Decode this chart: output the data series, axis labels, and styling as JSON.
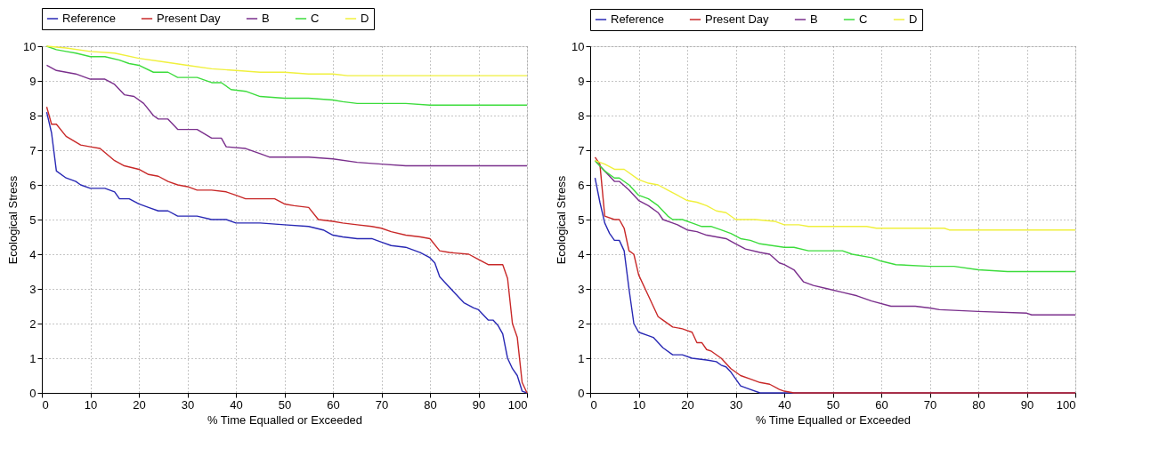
{
  "chart_data": [
    {
      "type": "line",
      "xlabel": "% Time Equalled or Exceeded",
      "ylabel": "Ecological Stress",
      "xlim": [
        0,
        100
      ],
      "ylim": [
        0,
        10
      ],
      "xticks": [
        0,
        10,
        20,
        30,
        40,
        50,
        60,
        70,
        80,
        90,
        100
      ],
      "yticks": [
        0,
        1,
        2,
        3,
        4,
        5,
        6,
        7,
        8,
        9,
        10
      ],
      "grid": true,
      "legend": "top",
      "line_style": "solid",
      "marker": "none",
      "series": [
        {
          "name": "Reference",
          "color": "#2828b4",
          "x": [
            1,
            2,
            3,
            5,
            7,
            8,
            10,
            13,
            15,
            16,
            18,
            20,
            22,
            24,
            26,
            28,
            32,
            35,
            38,
            40,
            45,
            50,
            55,
            58,
            60,
            62,
            65,
            68,
            70,
            72,
            75,
            78,
            80,
            81,
            82,
            83,
            85,
            87,
            89,
            90,
            92,
            93,
            94,
            95,
            96,
            97,
            98,
            99,
            100
          ],
          "values": [
            8.1,
            7.5,
            6.4,
            6.2,
            6.1,
            6.0,
            5.9,
            5.9,
            5.8,
            5.6,
            5.6,
            5.45,
            5.35,
            5.25,
            5.25,
            5.1,
            5.1,
            5.0,
            5.0,
            4.9,
            4.9,
            4.85,
            4.8,
            4.7,
            4.55,
            4.5,
            4.45,
            4.45,
            4.35,
            4.25,
            4.2,
            4.05,
            3.9,
            3.75,
            3.35,
            3.2,
            2.9,
            2.6,
            2.45,
            2.4,
            2.1,
            2.1,
            1.95,
            1.7,
            1.0,
            0.7,
            0.5,
            0.05,
            0
          ]
        },
        {
          "name": "Present Day",
          "color": "#c82828",
          "x": [
            1,
            2,
            3,
            5,
            8,
            10,
            12,
            15,
            17,
            20,
            22,
            24,
            26,
            28,
            30,
            32,
            35,
            38,
            40,
            42,
            48,
            50,
            52,
            55,
            57,
            60,
            62,
            65,
            68,
            70,
            72,
            75,
            78,
            80,
            82,
            84,
            88,
            90,
            92,
            95,
            96,
            97,
            98,
            99,
            100
          ],
          "values": [
            8.25,
            7.75,
            7.75,
            7.4,
            7.15,
            7.1,
            7.05,
            6.7,
            6.55,
            6.45,
            6.3,
            6.25,
            6.1,
            6.0,
            5.95,
            5.85,
            5.85,
            5.8,
            5.7,
            5.6,
            5.6,
            5.45,
            5.4,
            5.35,
            5.0,
            4.95,
            4.9,
            4.85,
            4.8,
            4.75,
            4.65,
            4.55,
            4.5,
            4.45,
            4.1,
            4.05,
            4.0,
            3.85,
            3.7,
            3.7,
            3.3,
            2.0,
            1.6,
            0.3,
            0
          ]
        },
        {
          "name": "B",
          "color": "#7a2f8c",
          "x": [
            1,
            3,
            5,
            7,
            10,
            13,
            15,
            17,
            19,
            21,
            23,
            24,
            26,
            28,
            32,
            35,
            37,
            38,
            42,
            45,
            47,
            50,
            55,
            60,
            65,
            70,
            75,
            100
          ],
          "values": [
            9.45,
            9.3,
            9.25,
            9.2,
            9.05,
            9.05,
            8.9,
            8.6,
            8.55,
            8.35,
            8.0,
            7.9,
            7.9,
            7.6,
            7.6,
            7.35,
            7.35,
            7.1,
            7.05,
            6.9,
            6.8,
            6.8,
            6.8,
            6.75,
            6.65,
            6.6,
            6.55,
            6.55
          ]
        },
        {
          "name": "C",
          "color": "#3cdc3c",
          "x": [
            1,
            3,
            5,
            7,
            10,
            13,
            16,
            18,
            20,
            23,
            26,
            28,
            32,
            35,
            37,
            39,
            42,
            45,
            50,
            55,
            60,
            62,
            65,
            75,
            80,
            100
          ],
          "values": [
            10,
            9.9,
            9.85,
            9.8,
            9.7,
            9.7,
            9.6,
            9.5,
            9.45,
            9.25,
            9.25,
            9.1,
            9.1,
            8.95,
            8.95,
            8.75,
            8.7,
            8.55,
            8.5,
            8.5,
            8.45,
            8.4,
            8.35,
            8.35,
            8.3,
            8.3
          ]
        },
        {
          "name": "D",
          "color": "#f0f03c",
          "x": [
            1,
            5,
            10,
            15,
            20,
            25,
            30,
            35,
            40,
            45,
            50,
            55,
            60,
            63,
            100
          ],
          "values": [
            10,
            9.95,
            9.85,
            9.8,
            9.65,
            9.55,
            9.45,
            9.35,
            9.3,
            9.25,
            9.25,
            9.2,
            9.2,
            9.15,
            9.15
          ]
        }
      ]
    },
    {
      "type": "line",
      "xlabel": "% Time Equalled or Exceeded",
      "ylabel": "Ecological Stress",
      "xlim": [
        0,
        100
      ],
      "ylim": [
        0,
        10
      ],
      "xticks": [
        0,
        10,
        20,
        30,
        40,
        50,
        60,
        70,
        80,
        90,
        100
      ],
      "yticks": [
        0,
        1,
        2,
        3,
        4,
        5,
        6,
        7,
        8,
        9,
        10
      ],
      "grid": true,
      "legend": "top",
      "line_style": "solid",
      "marker": "none",
      "series": [
        {
          "name": "Reference",
          "color": "#2828b4",
          "x": [
            1,
            2,
            3,
            4,
            5,
            6,
            7,
            8,
            9,
            10,
            12,
            13,
            15,
            17,
            19,
            21,
            24,
            26,
            27,
            28,
            29,
            30,
            31,
            33,
            35,
            100
          ],
          "values": [
            6.2,
            5.5,
            4.9,
            4.6,
            4.4,
            4.4,
            4.1,
            3.0,
            2.0,
            1.75,
            1.65,
            1.6,
            1.3,
            1.1,
            1.1,
            1.0,
            0.95,
            0.9,
            0.8,
            0.75,
            0.6,
            0.4,
            0.2,
            0.1,
            0,
            0
          ]
        },
        {
          "name": "Present Day",
          "color": "#c82828",
          "x": [
            1,
            2,
            3,
            5,
            6,
            7,
            8,
            9,
            10,
            12,
            14,
            15,
            17,
            19,
            20,
            21,
            22,
            23,
            24,
            25,
            27,
            29,
            31,
            33,
            35,
            37,
            39,
            40,
            42,
            100
          ],
          "values": [
            6.8,
            6.6,
            5.1,
            5.0,
            5.0,
            4.75,
            4.1,
            4.0,
            3.4,
            2.8,
            2.2,
            2.1,
            1.9,
            1.85,
            1.8,
            1.75,
            1.45,
            1.45,
            1.25,
            1.2,
            1.0,
            0.7,
            0.5,
            0.4,
            0.3,
            0.25,
            0.1,
            0.05,
            0,
            0
          ]
        },
        {
          "name": "B",
          "color": "#7a2f8c",
          "x": [
            1,
            3,
            5,
            6,
            8,
            10,
            12,
            14,
            15,
            17,
            18,
            20,
            22,
            24,
            26,
            28,
            30,
            32,
            35,
            37,
            39,
            40,
            42,
            44,
            46,
            49,
            52,
            55,
            58,
            62,
            67,
            70,
            72,
            80,
            90,
            91,
            100
          ],
          "values": [
            6.7,
            6.4,
            6.1,
            6.1,
            5.85,
            5.55,
            5.4,
            5.2,
            5.0,
            4.9,
            4.85,
            4.7,
            4.65,
            4.55,
            4.5,
            4.45,
            4.3,
            4.15,
            4.05,
            4.0,
            3.75,
            3.7,
            3.55,
            3.2,
            3.1,
            3.0,
            2.9,
            2.8,
            2.65,
            2.5,
            2.5,
            2.45,
            2.4,
            2.35,
            2.3,
            2.25,
            2.25
          ]
        },
        {
          "name": "C",
          "color": "#3cdc3c",
          "x": [
            1,
            3,
            5,
            6,
            8,
            10,
            12,
            14,
            16,
            17,
            19,
            21,
            23,
            25,
            27,
            29,
            31,
            33,
            35,
            40,
            42,
            45,
            48,
            52,
            54,
            58,
            60,
            63,
            70,
            75,
            80,
            86,
            100
          ],
          "values": [
            6.7,
            6.4,
            6.2,
            6.2,
            6.0,
            5.7,
            5.6,
            5.4,
            5.1,
            5.0,
            5.0,
            4.9,
            4.8,
            4.8,
            4.7,
            4.6,
            4.45,
            4.4,
            4.3,
            4.2,
            4.2,
            4.1,
            4.1,
            4.1,
            4.0,
            3.9,
            3.8,
            3.7,
            3.65,
            3.65,
            3.55,
            3.5,
            3.5
          ]
        },
        {
          "name": "D",
          "color": "#f0f03c",
          "x": [
            1,
            3,
            5,
            7,
            10,
            12,
            14,
            16,
            18,
            20,
            22,
            24,
            26,
            28,
            30,
            34,
            38,
            40,
            43,
            45,
            57,
            59,
            73,
            74,
            100
          ],
          "values": [
            6.7,
            6.6,
            6.45,
            6.45,
            6.15,
            6.05,
            6.0,
            5.85,
            5.7,
            5.55,
            5.5,
            5.4,
            5.25,
            5.2,
            5.0,
            5.0,
            4.95,
            4.85,
            4.85,
            4.8,
            4.8,
            4.75,
            4.75,
            4.7,
            4.7
          ]
        }
      ]
    }
  ]
}
